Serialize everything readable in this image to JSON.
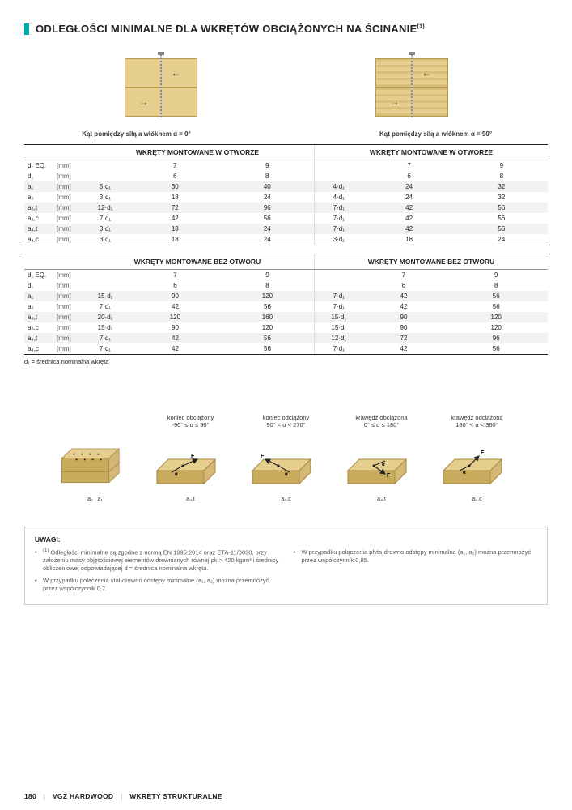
{
  "title": "ODLEGŁOŚCI MINIMALNE DLA WKRĘTÓW OBCIĄŻONYCH NA ŚCINANIE",
  "title_sup": "(1)",
  "captions": {
    "left": "Kąt pomiędzy siłą a włóknem α = 0°",
    "right": "Kąt pomiędzy siłą a włóknem α = 90°"
  },
  "section1": {
    "header": "WKRĘTY MONTOWANE W OTWORZE",
    "rows": [
      {
        "label": "d₁ EQ.",
        "unit": "[mm]",
        "v": [
          "",
          "7",
          "9",
          "",
          "7",
          "9"
        ],
        "cls": "wh"
      },
      {
        "label": "d₁",
        "unit": "[mm]",
        "v": [
          "",
          "6",
          "8",
          "",
          "6",
          "8"
        ],
        "cls": "wh"
      },
      {
        "label": "a₁",
        "unit": "[mm]",
        "v": [
          "5·d₁",
          "30",
          "40",
          "4·d₁",
          "24",
          "32"
        ],
        "cls": "light"
      },
      {
        "label": "a₂",
        "unit": "[mm]",
        "v": [
          "3·d₁",
          "18",
          "24",
          "4·d₁",
          "24",
          "32"
        ],
        "cls": "wh"
      },
      {
        "label": "a₃,t",
        "unit": "[mm]",
        "v": [
          "12·d₁",
          "72",
          "96",
          "7·d₁",
          "42",
          "56"
        ],
        "cls": "light"
      },
      {
        "label": "a₃,c",
        "unit": "[mm]",
        "v": [
          "7·d₁",
          "42",
          "56",
          "7·d₁",
          "42",
          "56"
        ],
        "cls": "wh"
      },
      {
        "label": "a₄,t",
        "unit": "[mm]",
        "v": [
          "3·d₁",
          "18",
          "24",
          "7·d₁",
          "42",
          "56"
        ],
        "cls": "light"
      },
      {
        "label": "a₄,c",
        "unit": "[mm]",
        "v": [
          "3·d₁",
          "18",
          "24",
          "3·d₁",
          "18",
          "24"
        ],
        "cls": "wh"
      }
    ]
  },
  "section2": {
    "header": "WKRĘTY MONTOWANE BEZ OTWORU",
    "rows": [
      {
        "label": "d₁ EQ.",
        "unit": "[mm]",
        "v": [
          "",
          "7",
          "9",
          "",
          "7",
          "9"
        ],
        "cls": "wh"
      },
      {
        "label": "d₁",
        "unit": "[mm]",
        "v": [
          "",
          "6",
          "8",
          "",
          "6",
          "8"
        ],
        "cls": "wh"
      },
      {
        "label": "a₁",
        "unit": "[mm]",
        "v": [
          "15·d₁",
          "90",
          "120",
          "7·d₁",
          "42",
          "56"
        ],
        "cls": "light"
      },
      {
        "label": "a₂",
        "unit": "[mm]",
        "v": [
          "7·d₁",
          "42",
          "56",
          "7·d₁",
          "42",
          "56"
        ],
        "cls": "wh"
      },
      {
        "label": "a₃,t",
        "unit": "[mm]",
        "v": [
          "20·d₁",
          "120",
          "160",
          "15·d₁",
          "90",
          "120"
        ],
        "cls": "light"
      },
      {
        "label": "a₃,c",
        "unit": "[mm]",
        "v": [
          "15·d₁",
          "90",
          "120",
          "15·d₁",
          "90",
          "120"
        ],
        "cls": "wh"
      },
      {
        "label": "a₄,t",
        "unit": "[mm]",
        "v": [
          "7·d₁",
          "42",
          "56",
          "12·d₁",
          "72",
          "96"
        ],
        "cls": "light"
      },
      {
        "label": "a₄,c",
        "unit": "[mm]",
        "v": [
          "7·d₁",
          "42",
          "56",
          "7·d₁",
          "42",
          "56"
        ],
        "cls": "wh"
      }
    ]
  },
  "legend": "d₁ = średnica nominalna wkręta",
  "block_captions": [
    {
      "t1": "",
      "t2": ""
    },
    {
      "t1": "koniec obciążony",
      "t2": "-90° ≤ α ≤ 90°"
    },
    {
      "t1": "koniec odciążony",
      "t2": "90° < α < 270°"
    },
    {
      "t1": "krawędź obciążona",
      "t2": "0° ≤ α ≤ 180°"
    },
    {
      "t1": "krawędź odciążona",
      "t2": "180° < α < 360°"
    }
  ],
  "block_sublabels": [
    "a₂ a₄ a₁ a₃",
    "a₃,t",
    "a₃,c",
    "a₄,t",
    "a₄,c"
  ],
  "uwagi": {
    "title": "UWAGI:",
    "left": [
      "Odległości minimalne są zgodne z normą EN 1995:2014 oraz ETA-11/0030, przy założeniu masy objętościowej elementów drewnianych równej ρk > 420 kg/m³ i średnicy obliczeniowej odpowiadającej d = średnica nominalna wkręta.",
      "W przypadku połączenia stal-drewno odstępy minimalne (a₁, a₂) można przemnożyć przez współczynnik 0,7."
    ],
    "right": [
      "W przypadku połączenia płyta-drewno odstępy minimalne (a₁, a₂) można przemnożyć przez współczynnik 0,85."
    ]
  },
  "footer": {
    "page": "180",
    "brand": "VGZ HARDWOOD",
    "section": "WKRĘTY STRUKTURALNE"
  },
  "colors": {
    "accent": "#0aa",
    "wood": "#e6cf8e",
    "wood_dark": "#c9ab5e",
    "row_alt": "#f2f2f2"
  }
}
